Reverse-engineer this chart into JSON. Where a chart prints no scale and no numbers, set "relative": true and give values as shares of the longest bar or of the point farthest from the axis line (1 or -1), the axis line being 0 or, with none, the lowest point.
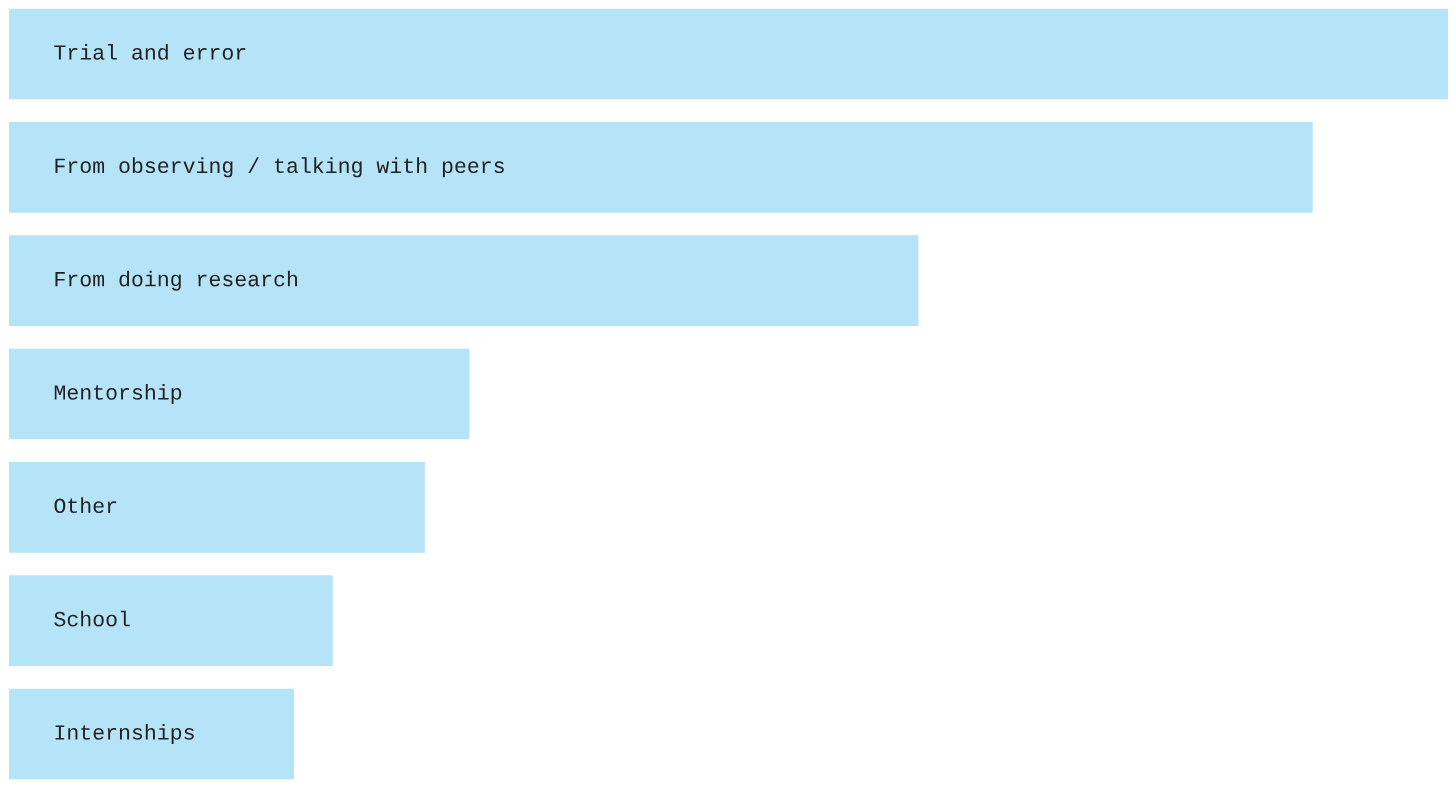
{
  "chart_data": {
    "type": "bar",
    "orientation": "horizontal",
    "relative": true,
    "categories": [
      "Trial and error",
      "From observing / talking with peers",
      "From doing research",
      "Mentorship",
      "Other",
      "School",
      "Internships"
    ],
    "values": [
      1,
      0.906,
      0.632,
      0.32,
      0.289,
      0.225,
      0.198
    ],
    "color": "#b5e4f8"
  }
}
